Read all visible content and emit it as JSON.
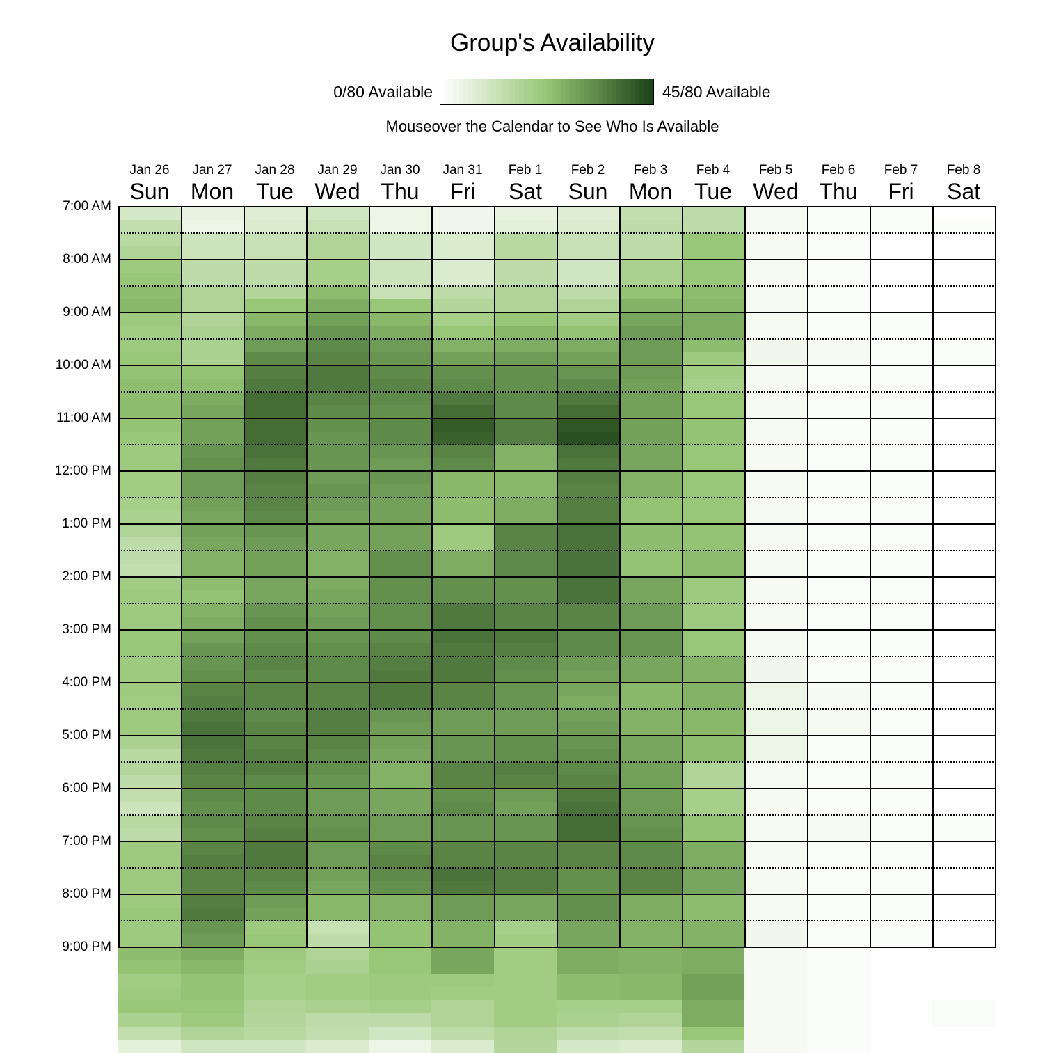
{
  "title": "Group's Availability",
  "legend": {
    "min_label": "0/80 Available",
    "max_label": "45/80 Available",
    "min_value": 0,
    "max_value": 45,
    "total": 80,
    "color_low": "#ffffff",
    "color_mid": "#96c675",
    "color_high": "#1f4519"
  },
  "instructions": "Mouseover the Calendar to See Who Is Available",
  "days": [
    {
      "date": "Jan 26",
      "dow": "Sun"
    },
    {
      "date": "Jan 27",
      "dow": "Mon"
    },
    {
      "date": "Jan 28",
      "dow": "Tue"
    },
    {
      "date": "Jan 29",
      "dow": "Wed"
    },
    {
      "date": "Jan 30",
      "dow": "Thu"
    },
    {
      "date": "Jan 31",
      "dow": "Fri"
    },
    {
      "date": "Feb 1",
      "dow": "Sat"
    },
    {
      "date": "Feb 2",
      "dow": "Sun"
    },
    {
      "date": "Feb 3",
      "dow": "Mon"
    },
    {
      "date": "Feb 4",
      "dow": "Tue"
    },
    {
      "date": "Feb 5",
      "dow": "Wed"
    },
    {
      "date": "Feb 6",
      "dow": "Thu"
    },
    {
      "date": "Feb 7",
      "dow": "Fri"
    },
    {
      "date": "Feb 8",
      "dow": "Sat"
    }
  ],
  "time_labels": [
    "7:00 AM",
    "8:00 AM",
    "9:00 AM",
    "10:00 AM",
    "11:00 AM",
    "12:00 PM",
    "1:00 PM",
    "2:00 PM",
    "3:00 PM",
    "4:00 PM",
    "5:00 PM",
    "6:00 PM",
    "7:00 PM",
    "8:00 PM",
    "9:00 PM"
  ],
  "slot_minutes": 15,
  "availability": [
    [
      9,
      13,
      15,
      17,
      21,
      22,
      24,
      25,
      21,
      20,
      21,
      22,
      23,
      24,
      24,
      24,
      23,
      22,
      21,
      21,
      20,
      20,
      19,
      18,
      17,
      14,
      14,
      13,
      20,
      21,
      21,
      21,
      22,
      22,
      21,
      21,
      21,
      20,
      21,
      21,
      18,
      15,
      16,
      14,
      13,
      11,
      15,
      14,
      21,
      21,
      21,
      21,
      21,
      22,
      21,
      21,
      24,
      23,
      20,
      21,
      22,
      18,
      13,
      6
    ],
    [
      5,
      4,
      11,
      11,
      14,
      14,
      17,
      17,
      17,
      18,
      18,
      18,
      23,
      24,
      27,
      28,
      29,
      29,
      31,
      32,
      30,
      30,
      29,
      28,
      29,
      28,
      26,
      26,
      24,
      23,
      26,
      27,
      29,
      31,
      31,
      32,
      34,
      35,
      36,
      37,
      37,
      36,
      35,
      34,
      33,
      32,
      33,
      32,
      34,
      35,
      34,
      34,
      35,
      36,
      31,
      30,
      27,
      25,
      23,
      23,
      22,
      21,
      17,
      10
    ],
    [
      7,
      8,
      12,
      12,
      14,
      14,
      16,
      22,
      25,
      27,
      30,
      33,
      35,
      36,
      38,
      38,
      38,
      38,
      37,
      36,
      35,
      34,
      34,
      33,
      31,
      30,
      29,
      29,
      28,
      28,
      31,
      32,
      32,
      33,
      34,
      33,
      34,
      34,
      33,
      34,
      34,
      35,
      35,
      33,
      33,
      33,
      34,
      35,
      36,
      36,
      34,
      33,
      30,
      29,
      21,
      22,
      21,
      20,
      19,
      19,
      17,
      16,
      15,
      10
    ],
    [
      10,
      12,
      17,
      17,
      19,
      19,
      24,
      27,
      29,
      31,
      33,
      34,
      36,
      36,
      34,
      33,
      32,
      31,
      31,
      31,
      30,
      31,
      30,
      29,
      28,
      28,
      26,
      26,
      27,
      28,
      29,
      30,
      31,
      32,
      33,
      33,
      34,
      34,
      35,
      35,
      34,
      33,
      32,
      31,
      30,
      30,
      31,
      32,
      30,
      30,
      29,
      28,
      25,
      25,
      12,
      14,
      17,
      18,
      20,
      20,
      18,
      14,
      13,
      8
    ],
    [
      4,
      4,
      10,
      10,
      11,
      11,
      12,
      22,
      25,
      27,
      30,
      31,
      33,
      34,
      33,
      32,
      33,
      33,
      31,
      30,
      31,
      30,
      29,
      29,
      29,
      29,
      32,
      32,
      32,
      32,
      32,
      32,
      33,
      34,
      35,
      36,
      36,
      36,
      31,
      30,
      29,
      28,
      26,
      26,
      28,
      28,
      30,
      30,
      33,
      34,
      33,
      32,
      26,
      26,
      23,
      23,
      22,
      22,
      21,
      21,
      19,
      14,
      10,
      4
    ],
    [
      3,
      3,
      8,
      8,
      8,
      8,
      14,
      16,
      19,
      22,
      26,
      29,
      32,
      33,
      36,
      38,
      41,
      40,
      34,
      33,
      25,
      25,
      24,
      24,
      21,
      21,
      27,
      27,
      32,
      32,
      36,
      36,
      37,
      36,
      36,
      36,
      34,
      34,
      30,
      30,
      31,
      31,
      34,
      34,
      32,
      33,
      31,
      31,
      34,
      34,
      37,
      36,
      30,
      30,
      26,
      26,
      28,
      28,
      21,
      20,
      17,
      17,
      14,
      8
    ],
    [
      5,
      6,
      15,
      15,
      14,
      14,
      17,
      17,
      22,
      25,
      27,
      30,
      32,
      32,
      33,
      33,
      35,
      35,
      26,
      26,
      25,
      25,
      27,
      27,
      34,
      34,
      33,
      33,
      32,
      32,
      34,
      34,
      36,
      35,
      33,
      32,
      31,
      31,
      30,
      30,
      32,
      32,
      35,
      34,
      30,
      29,
      31,
      31,
      34,
      34,
      35,
      35,
      28,
      28,
      19,
      20,
      20,
      20,
      20,
      20,
      20,
      20,
      17,
      16
    ],
    [
      7,
      8,
      12,
      12,
      10,
      10,
      14,
      17,
      20,
      23,
      27,
      29,
      31,
      33,
      36,
      38,
      42,
      43,
      37,
      36,
      35,
      34,
      35,
      35,
      37,
      37,
      37,
      37,
      37,
      37,
      34,
      34,
      33,
      33,
      30,
      29,
      28,
      27,
      29,
      30,
      31,
      32,
      33,
      34,
      36,
      37,
      38,
      38,
      34,
      34,
      32,
      32,
      32,
      32,
      28,
      28,
      27,
      27,
      24,
      24,
      19,
      18,
      14,
      9
    ],
    [
      13,
      14,
      14,
      14,
      18,
      18,
      23,
      26,
      28,
      30,
      30,
      30,
      30,
      29,
      29,
      29,
      29,
      29,
      28,
      28,
      26,
      26,
      23,
      23,
      24,
      24,
      23,
      23,
      28,
      28,
      30,
      30,
      31,
      31,
      28,
      28,
      25,
      25,
      26,
      26,
      28,
      28,
      29,
      29,
      30,
      30,
      31,
      32,
      33,
      33,
      34,
      34,
      27,
      27,
      26,
      26,
      26,
      26,
      25,
      25,
      19,
      17,
      13,
      8
    ],
    [
      14,
      14,
      22,
      22,
      22,
      22,
      24,
      25,
      27,
      27,
      24,
      21,
      20,
      19,
      22,
      22,
      23,
      23,
      22,
      22,
      22,
      22,
      22,
      22,
      23,
      23,
      24,
      24,
      21,
      21,
      21,
      21,
      22,
      22,
      26,
      26,
      26,
      26,
      25,
      25,
      24,
      24,
      17,
      17,
      19,
      19,
      23,
      23,
      27,
      27,
      28,
      28,
      24,
      24,
      26,
      26,
      27,
      27,
      29,
      29,
      27,
      27,
      22,
      16
    ],
    [
      2,
      2,
      2,
      2,
      2,
      2,
      2,
      2,
      2,
      2,
      3,
      3,
      2,
      2,
      2,
      2,
      2,
      2,
      2,
      2,
      2,
      2,
      2,
      2,
      2,
      2,
      2,
      2,
      2,
      2,
      2,
      2,
      2,
      2,
      3,
      3,
      4,
      4,
      4,
      4,
      4,
      4,
      2,
      2,
      2,
      2,
      2,
      2,
      2,
      2,
      2,
      2,
      2,
      2,
      3,
      3,
      2,
      2,
      2,
      2,
      2,
      2,
      2,
      2
    ],
    [
      1,
      1,
      1,
      1,
      1,
      1,
      1,
      1,
      1,
      1,
      2,
      2,
      1,
      1,
      1,
      1,
      1,
      1,
      1,
      1,
      1,
      1,
      1,
      1,
      1,
      1,
      1,
      1,
      1,
      1,
      1,
      1,
      1,
      1,
      1,
      1,
      2,
      2,
      2,
      2,
      1,
      1,
      1,
      1,
      1,
      1,
      2,
      2,
      1,
      1,
      1,
      1,
      1,
      1,
      1,
      1,
      1,
      1,
      1,
      1,
      1,
      1,
      1,
      1
    ],
    [
      1,
      1,
      0,
      0,
      0,
      0,
      0,
      0,
      1,
      1,
      1,
      1,
      1,
      1,
      1,
      1,
      1,
      1,
      1,
      1,
      1,
      1,
      1,
      1,
      1,
      1,
      1,
      1,
      1,
      1,
      1,
      1,
      1,
      1,
      1,
      1,
      1,
      1,
      1,
      1,
      1,
      1,
      1,
      1,
      1,
      1,
      1,
      1,
      1,
      1,
      1,
      1,
      1,
      1,
      1,
      1,
      0,
      0,
      0,
      0,
      0,
      0,
      0,
      0
    ],
    [
      0,
      1,
      0,
      0,
      0,
      0,
      0,
      0,
      0,
      0,
      1,
      1,
      0,
      0,
      0,
      0,
      0,
      0,
      0,
      0,
      0,
      0,
      0,
      0,
      0,
      0,
      0,
      0,
      0,
      0,
      0,
      0,
      0,
      0,
      0,
      0,
      0,
      0,
      0,
      0,
      0,
      0,
      0,
      0,
      0,
      0,
      1,
      1,
      0,
      0,
      0,
      0,
      0,
      0,
      0,
      0,
      0,
      0,
      0,
      0,
      1,
      1,
      0,
      0
    ]
  ]
}
